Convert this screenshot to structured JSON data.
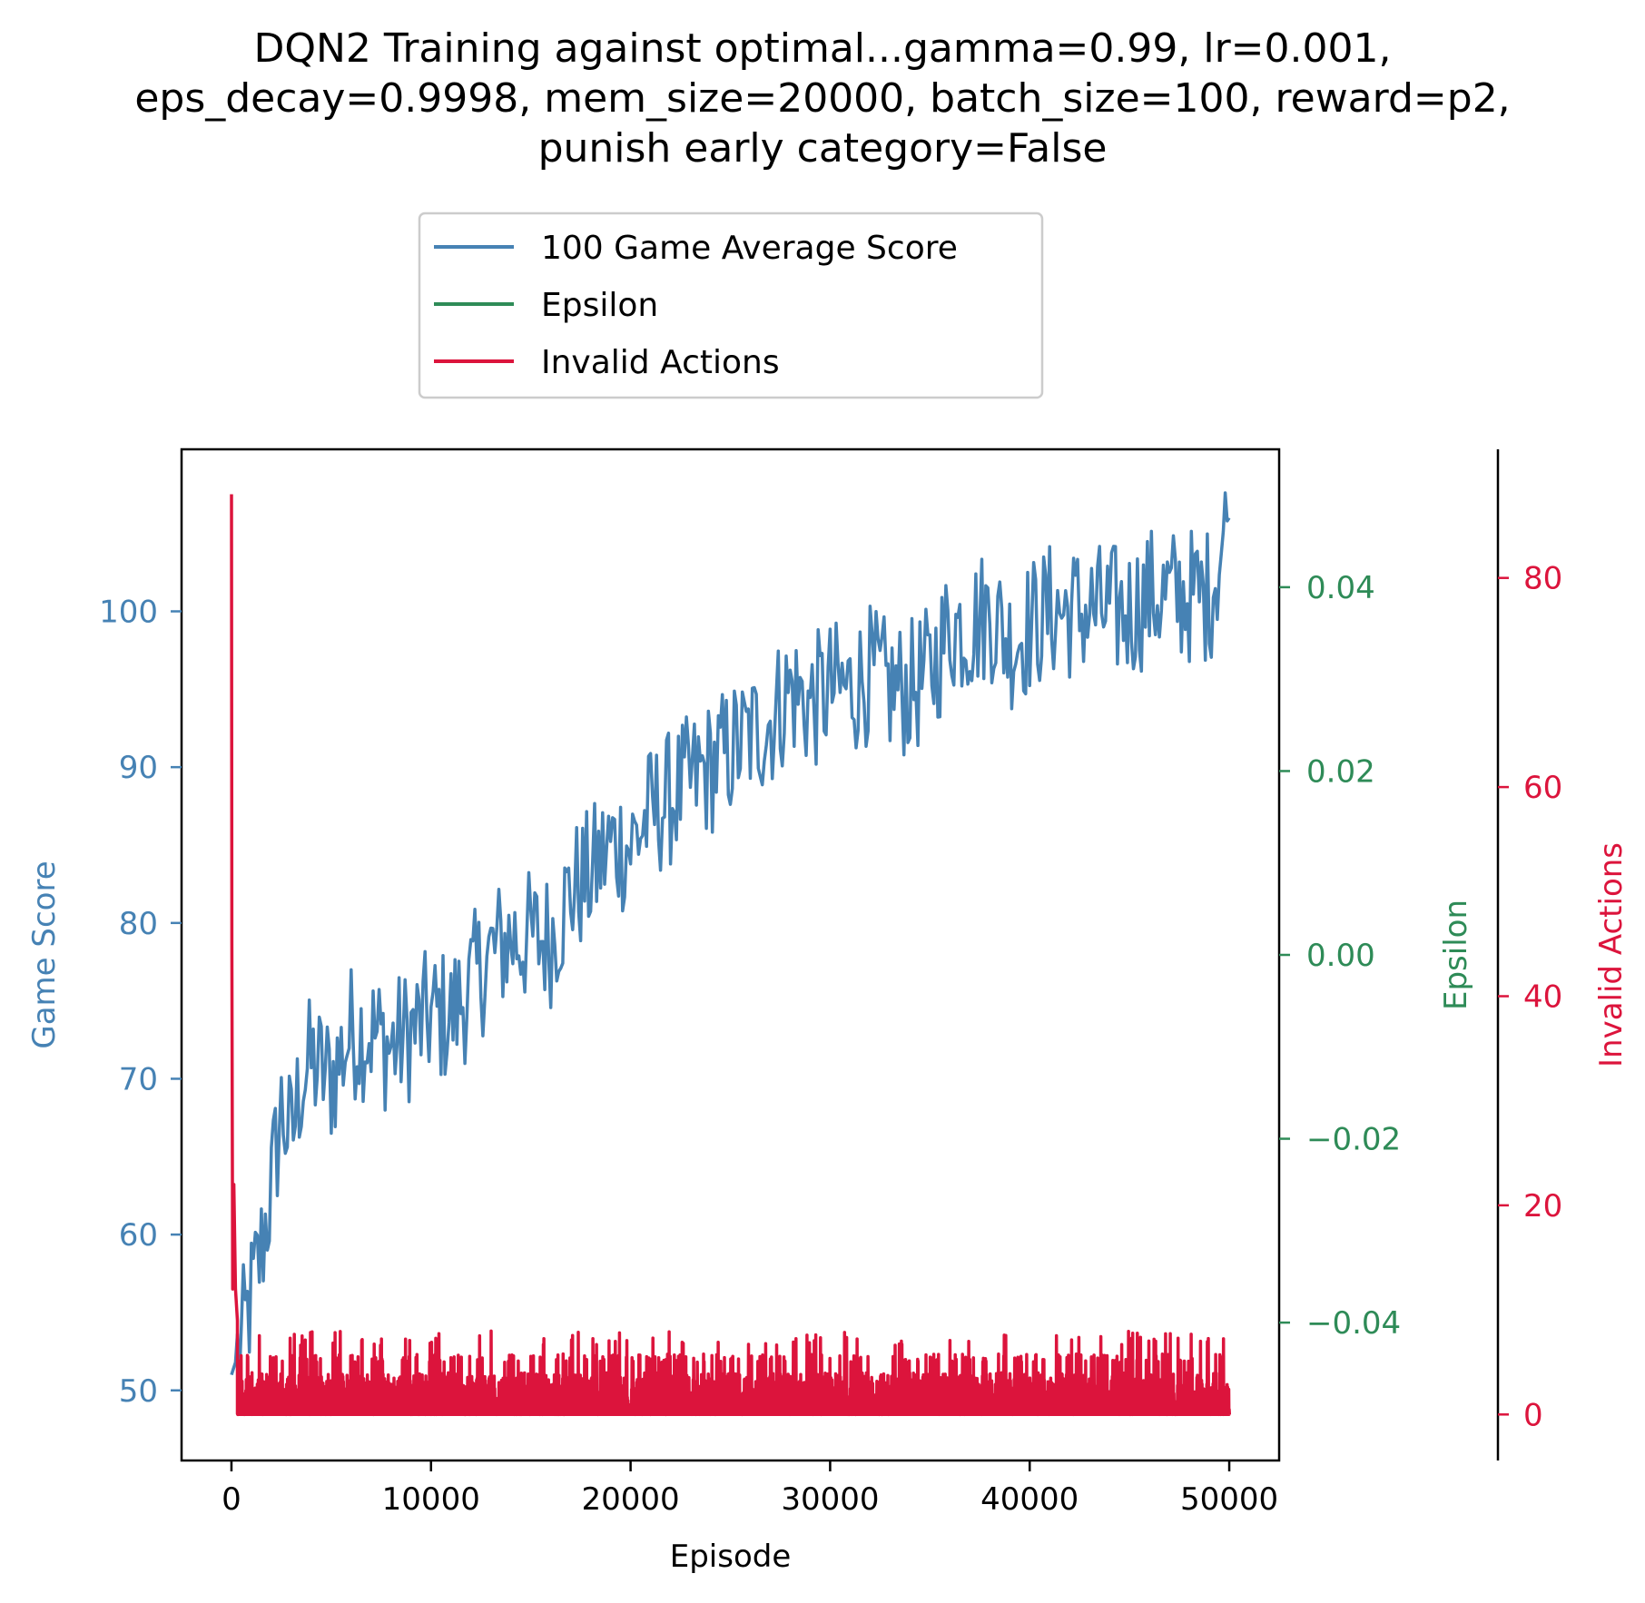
{
  "chart_data": {
    "type": "line",
    "title_lines": [
      "DQN2 Training against optimal...gamma=0.99, lr=0.001,",
      "eps_decay=0.9998, mem_size=20000, batch_size=100, reward=p2,",
      "punish early category=False"
    ],
    "xlabel": "Episode",
    "xlim": [
      -2500,
      52500
    ],
    "xticks": [
      0,
      10000,
      20000,
      30000,
      40000,
      50000
    ],
    "xtick_labels": [
      "0",
      "10000",
      "20000",
      "30000",
      "40000",
      "50000"
    ],
    "axes": {
      "score": {
        "label": "Game Score",
        "color": "#4682b4",
        "ylim": [
          45.5,
          110.4
        ],
        "ticks": [
          50,
          60,
          70,
          80,
          90,
          100
        ],
        "tick_labels": [
          "50",
          "60",
          "70",
          "80",
          "90",
          "100"
        ]
      },
      "epsilon": {
        "label": "Epsilon",
        "color": "#2e8b57",
        "ylim": [
          -0.055,
          0.055
        ],
        "ticks": [
          -0.04,
          -0.02,
          0.0,
          0.02,
          0.04
        ],
        "tick_labels": [
          "−0.04",
          "−0.02",
          "0.00",
          "0.02",
          "0.04"
        ]
      },
      "invalid": {
        "label": "Invalid Actions",
        "color": "#dc143c",
        "ylim": [
          -4.4,
          92.3
        ],
        "ticks": [
          0,
          20,
          40,
          60,
          80
        ],
        "tick_labels": [
          "0",
          "20",
          "40",
          "60",
          "80"
        ]
      }
    },
    "legend": {
      "placement": "upper center, above plot",
      "entries": [
        "100 Game Average Score",
        "Epsilon",
        "Invalid Actions"
      ]
    },
    "series": [
      {
        "name": "100 Game Average Score",
        "axis": "score",
        "color": "#4682b4",
        "x": [
          0,
          500,
          1000,
          1500,
          2000,
          2500,
          3000,
          3500,
          4000,
          5000,
          6000,
          7000,
          8000,
          9000,
          10000,
          11000,
          12000,
          13000,
          14000,
          15000,
          16000,
          17000,
          18000,
          19000,
          20000,
          21000,
          22000,
          23000,
          24000,
          25000,
          26000,
          27000,
          28000,
          29000,
          30000,
          31000,
          32000,
          33000,
          34000,
          35000,
          36000,
          37000,
          38000,
          39000,
          40000,
          41000,
          42000,
          43000,
          44000,
          45000,
          46000,
          47000,
          48000,
          49000,
          50000
        ],
        "values": [
          51,
          53,
          56,
          59,
          63,
          68,
          66,
          70,
          71,
          70,
          73,
          73,
          72,
          73,
          74,
          74,
          76,
          78,
          79,
          79,
          79,
          82,
          83,
          85,
          85,
          87,
          88,
          89,
          90,
          91,
          92,
          93,
          95,
          94,
          95,
          95,
          96,
          95,
          95,
          96,
          99,
          99,
          100,
          98,
          99,
          100,
          100,
          100,
          100,
          100,
          101,
          101,
          101,
          101,
          106
        ]
      },
      {
        "name": "Invalid Actions",
        "axis": "invalid",
        "color": "#dc143c",
        "spike": {
          "x": [
            0,
            20,
            60,
            120,
            200,
            300
          ],
          "values": [
            88,
            45,
            12,
            22,
            12,
            9
          ]
        },
        "band": {
          "min": 0,
          "typical_max": 4,
          "occasional_max": 5,
          "max": 8
        },
        "x_range": [
          0,
          50000
        ]
      }
    ]
  }
}
